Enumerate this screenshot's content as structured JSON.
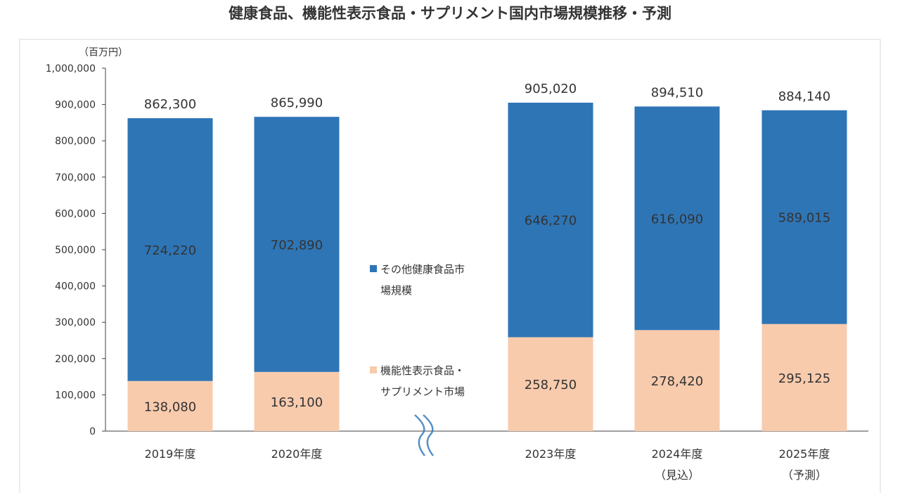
{
  "chart_data": {
    "type": "bar",
    "stacked": true,
    "title": "健康食品、機能性表示食品・サプリメント国内市場規模推移・予測",
    "unit_label": "（百万円）",
    "categories": [
      "2019年度",
      "2020年度",
      "2023年度",
      "2024年度",
      "2025年度"
    ],
    "category_notes": [
      "",
      "",
      "",
      "（見込）",
      "（予測）"
    ],
    "series": [
      {
        "name": "機能性表示食品・サプリメント市場",
        "legend_lines": [
          "機能性表示食品・",
          "サプリメント市場"
        ],
        "color": "#f8cbad",
        "values": [
          138080,
          163100,
          258750,
          278420,
          295125
        ],
        "labels": [
          "138,080",
          "163,100",
          "258,750",
          "278,420",
          "295,125"
        ]
      },
      {
        "name": "その他健康食品市場規模",
        "legend_lines": [
          "その他健康食品市",
          "場規模"
        ],
        "color": "#2e75b6",
        "values": [
          724220,
          702890,
          646270,
          616090,
          589015
        ],
        "labels": [
          "724,220",
          "702,890",
          "646,270",
          "616,090",
          "589,015"
        ]
      }
    ],
    "totals": [
      862300,
      865990,
      905020,
      894510,
      884140
    ],
    "total_labels": [
      "862,300",
      "865,990",
      "905,020",
      "894,510",
      "884,140"
    ],
    "ylim": [
      0,
      1000000
    ],
    "yticks": [
      0,
      100000,
      200000,
      300000,
      400000,
      500000,
      600000,
      700000,
      800000,
      900000,
      1000000
    ],
    "ytick_labels": [
      "0",
      "100,000",
      "200,000",
      "300,000",
      "400,000",
      "500,000",
      "600,000",
      "700,000",
      "800,000",
      "900,000",
      "1,000,000"
    ],
    "axis_break": "between 2020年度 and 2023年度",
    "legend_position": "center",
    "grid": false
  }
}
